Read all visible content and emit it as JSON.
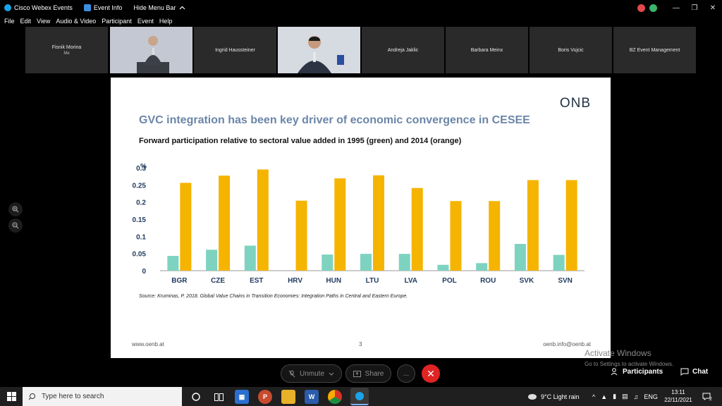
{
  "titlebar": {
    "app_name": "Cisco Webex Events",
    "event_info": "Event Info",
    "hide_menu": "Hide Menu Bar",
    "hide_menu_chevron": "^"
  },
  "menu": {
    "items": [
      "File",
      "Edit",
      "View",
      "Audio & Video",
      "Participant",
      "Event",
      "Help"
    ]
  },
  "participants": {
    "tiles": [
      {
        "name": "Fisnik Morina",
        "sub": "Me"
      },
      {
        "name": "",
        "sub": ""
      },
      {
        "name": "Ingrid Haussteiner",
        "sub": ""
      },
      {
        "name": "",
        "sub": ""
      },
      {
        "name": "Andreja Jaklic",
        "sub": ""
      },
      {
        "name": "Barbara Meinx",
        "sub": ""
      },
      {
        "name": "Boris Vujcic",
        "sub": ""
      },
      {
        "name": "BZ Event Management",
        "sub": ""
      }
    ]
  },
  "slide": {
    "logo": "ONB",
    "title": "GVC integration has been key driver of economic convergence in CESEE",
    "subtitle": "Forward participation relative to sectoral value added in 1995 (green) and 2014 (orange)",
    "source": "Source: Kruminas, P. 2018. Global Value Chains in Transition Economies: Integration Paths in Central and Eastern Europe.",
    "footer_left": "www.oenb.at",
    "footer_page": "3",
    "footer_right": "oenb.info@oenb.at"
  },
  "chart_data": {
    "type": "bar",
    "title": "",
    "ylabel": "%",
    "xlabel": "",
    "ylim": [
      0,
      0.3
    ],
    "yticks": [
      "0",
      "0.05",
      "0.1",
      "0.15",
      "0.2",
      "0.25",
      "0.3"
    ],
    "categories": [
      "BGR",
      "CZE",
      "EST",
      "HRV",
      "HUN",
      "LTU",
      "LVA",
      "POL",
      "ROU",
      "SVK",
      "SVN"
    ],
    "series": [
      {
        "name": "1995",
        "color": "#7dd3c0",
        "values": [
          0.043,
          0.061,
          0.073,
          0.0,
          0.047,
          0.049,
          0.049,
          0.017,
          0.022,
          0.078,
          0.046
        ]
      },
      {
        "name": "2014",
        "color": "#f5b400",
        "values": [
          0.256,
          0.277,
          0.295,
          0.204,
          0.269,
          0.278,
          0.241,
          0.203,
          0.203,
          0.264,
          0.264
        ]
      }
    ],
    "grid": false,
    "legend": "none"
  },
  "watermark": {
    "line1": "Activate Windows",
    "line2": "Go to Settings to activate Windows."
  },
  "controls": {
    "unmute": "Unmute",
    "share": "Share",
    "more": "...",
    "participants": "Participants",
    "chat": "Chat"
  },
  "taskbar": {
    "search_placeholder": "Type here to search",
    "weather": "9°C  Light rain",
    "lang": "ENG",
    "time": "13:11",
    "date": "22/11/2021",
    "notifications": "2"
  },
  "colors": {
    "end_call": "#e02424",
    "title_blue": "#6b86a8"
  }
}
